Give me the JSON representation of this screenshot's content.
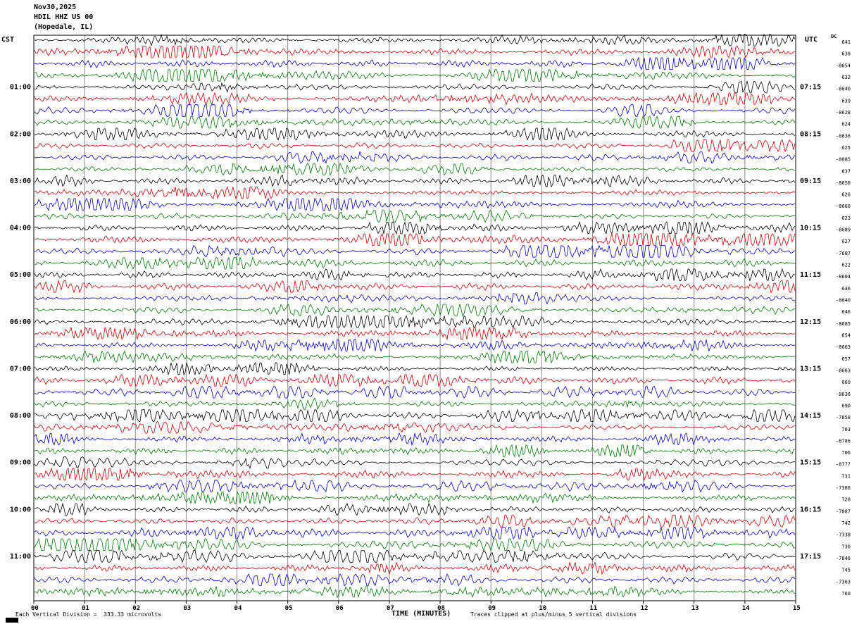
{
  "header": {
    "date": "Nov30,2025",
    "station": "HDIL HHZ US 00",
    "location": "(Hopedale, IL)"
  },
  "axes": {
    "left_timezone": "CST",
    "right_timezone": "UTC",
    "dc_label": "DC"
  },
  "footer": {
    "scale_note": "Each Vertical Division =  333.33 microvolts",
    "x_title": "TIME (MINUTES)",
    "clip_note": "Traces clipped at plus/minus 5 vertical divisions"
  },
  "chart_data": {
    "type": "line",
    "subtype": "seismogram-helicorder",
    "title": "HDIL HHZ US 00 (Hopedale, IL) Nov30,2025",
    "xlabel": "TIME (MINUTES)",
    "x_range_minutes": [
      0,
      15
    ],
    "x_ticks": [
      "00",
      "01",
      "02",
      "03",
      "04",
      "05",
      "06",
      "07",
      "08",
      "09",
      "10",
      "11",
      "12",
      "13",
      "14",
      "15"
    ],
    "minutes_per_row": 15,
    "row_count": 48,
    "trace_color_cycle": [
      "#000000",
      "#cc0000",
      "#0000cc",
      "#007700"
    ],
    "left_time_labels_cst": [
      "01:00",
      "02:00",
      "03:00",
      "04:00",
      "05:00",
      "06:00",
      "07:00",
      "08:00",
      "09:00",
      "10:00",
      "11:00"
    ],
    "right_time_labels_utc": [
      "07:15",
      "08:15",
      "09:15",
      "10:15",
      "11:15",
      "12:15",
      "13:15",
      "14:15",
      "15:15",
      "16:15",
      "17:15"
    ],
    "hour_label_first_row": 4,
    "hour_label_row_step": 4,
    "dc_offsets": [
      641,
      638,
      -8654,
      632,
      -8640,
      639,
      -8628,
      624,
      -8636,
      625,
      -8685,
      637,
      -8650,
      626,
      -8660,
      623,
      -8689,
      627,
      -7687,
      622,
      -8604,
      636,
      -8640,
      646,
      -8685,
      654,
      -8663,
      657,
      -8663,
      669,
      -8636,
      690,
      -7858,
      703,
      -8786,
      706,
      -8777,
      731,
      -7386,
      728,
      -7887,
      742,
      -7338,
      730,
      -7846,
      745,
      -7363,
      760
    ],
    "scale_note": "Each Vertical Division =  333.33 microvolts",
    "clip_note": "Traces clipped at plus/minus 5 vertical divisions",
    "waveform_note": "Continuous seismic background noise with intermittent higher-amplitude bursts; individual sample values not resolvable from the image.",
    "grid": "vertical gridline at every minute",
    "legend_position": "none"
  }
}
